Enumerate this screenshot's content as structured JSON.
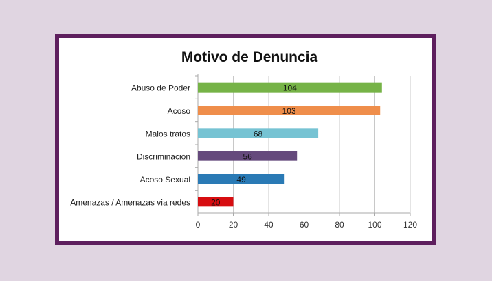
{
  "chart_data": {
    "type": "bar",
    "orientation": "horizontal",
    "title": "Motivo de Denuncia",
    "categories": [
      "Abuso de Poder",
      "Acoso",
      "Malos tratos",
      "Discriminación",
      "Acoso Sexual",
      "Amenazas / Amenazas via redes"
    ],
    "values": [
      104,
      103,
      68,
      56,
      49,
      20
    ],
    "data_labels": [
      "104",
      "103",
      "68",
      "56",
      "49",
      "20"
    ],
    "colors": [
      "#76b347",
      "#ef8e4b",
      "#76c3d3",
      "#654a7c",
      "#2a7ab5",
      "#d70d10"
    ],
    "xlim": [
      0,
      120
    ],
    "xticks": [
      0,
      20,
      40,
      60,
      80,
      100,
      120
    ],
    "xtick_labels": [
      "0",
      "20",
      "40",
      "60",
      "80",
      "100",
      "120"
    ],
    "grid": "vertical",
    "legend": "none"
  },
  "colors": {
    "background": "#e0d5e1",
    "frame_border": "#5e1f5e"
  }
}
